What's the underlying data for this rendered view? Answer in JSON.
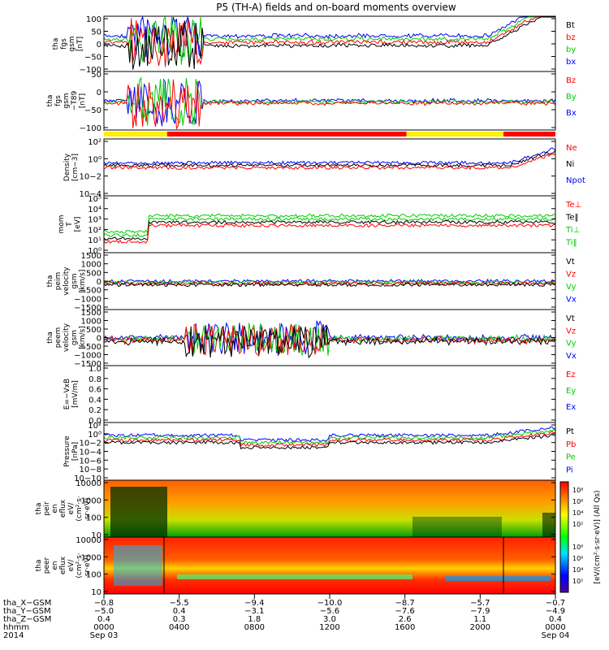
{
  "chart_data": {
    "type": "line",
    "title": "P5 (TH-A) fields and on-board moments overview",
    "panels": [
      {
        "id": "fgs-gsm",
        "ylabel": [
          "tha",
          "fgs",
          "gsm",
          "[nT]"
        ],
        "yticks": [
          "100",
          "50",
          "0",
          "−50",
          "−100"
        ],
        "legend": [
          {
            "label": "Bt",
            "color": "#000000"
          },
          {
            "label": "bz",
            "color": "#ff0000"
          },
          {
            "label": "by",
            "color": "#00cc00"
          },
          {
            "label": "bx",
            "color": "#0000ff"
          }
        ]
      },
      {
        "id": "fgs-gsm-t89",
        "ylabel": [
          "tha",
          "fgs",
          "gsm",
          "−T89",
          "[nT]"
        ],
        "yticks": [
          "50",
          "0",
          "−50",
          "−100"
        ],
        "legend": [
          {
            "label": "Bz",
            "color": "#ff0000"
          },
          {
            "label": "By",
            "color": "#00cc00"
          },
          {
            "label": "Bx",
            "color": "#0000ff"
          }
        ]
      },
      {
        "id": "density",
        "ylabel": [
          "Density",
          "[cm−3]"
        ],
        "yticks": [
          "10²",
          "10⁰",
          "10−2",
          "10−4"
        ],
        "legend": [
          {
            "label": "Ne",
            "color": "#ff0000"
          },
          {
            "label": "Ni",
            "color": "#000000"
          },
          {
            "label": "Npot",
            "color": "#0000ff"
          }
        ]
      },
      {
        "id": "temperature",
        "ylabel": [
          "mom",
          "T",
          "[eV]"
        ],
        "yticks": [
          "10⁵",
          "10⁴",
          "10³",
          "10²",
          "10¹",
          "10⁰"
        ],
        "legend": [
          {
            "label": "Te⊥",
            "color": "#ff0000"
          },
          {
            "label": "Te‖",
            "color": "#000000"
          },
          {
            "label": "Ti⊥",
            "color": "#00cc00"
          },
          {
            "label": "Ti‖",
            "color": "#00cc00"
          }
        ]
      },
      {
        "id": "peim-velocity",
        "ylabel": [
          "tha",
          "peim",
          "velocity",
          "gsm",
          "[km/s]"
        ],
        "yticks": [
          "1500",
          "1000",
          "500",
          "0",
          "−500",
          "−1000",
          "−1500"
        ],
        "legend": [
          {
            "label": "Vt",
            "color": "#000000"
          },
          {
            "label": "Vz",
            "color": "#ff0000"
          },
          {
            "label": "Vy",
            "color": "#00cc00"
          },
          {
            "label": "Vx",
            "color": "#0000ff"
          }
        ]
      },
      {
        "id": "peem-velocity",
        "ylabel": [
          "tha",
          "peem",
          "velocity",
          "gsm",
          "[km/s]"
        ],
        "yticks": [
          "1500",
          "1000",
          "500",
          "0",
          "−500",
          "−1000",
          "−1500"
        ],
        "legend": [
          {
            "label": "Vt",
            "color": "#000000"
          },
          {
            "label": "Vz",
            "color": "#ff0000"
          },
          {
            "label": "Vy",
            "color": "#00cc00"
          },
          {
            "label": "Vx",
            "color": "#0000ff"
          }
        ]
      },
      {
        "id": "efield",
        "ylabel": [
          "E=−VxB",
          "[mV/m]"
        ],
        "yticks": [
          "1.0",
          "0.8",
          "0.6",
          "0.4",
          "0.2",
          "0.0"
        ],
        "legend": [
          {
            "label": "Ez",
            "color": "#ff0000"
          },
          {
            "label": "Ey",
            "color": "#00cc00"
          },
          {
            "label": "Ex",
            "color": "#0000ff"
          }
        ]
      },
      {
        "id": "pressure",
        "ylabel": [
          "Pressure",
          "[nPa]"
        ],
        "yticks": [
          "10²",
          "10⁰",
          "10−2",
          "10−4",
          "10−6",
          "10−8",
          "10−10"
        ],
        "legend": [
          {
            "label": "Pt",
            "color": "#000000"
          },
          {
            "label": "Pb",
            "color": "#ff0000"
          },
          {
            "label": "Pe",
            "color": "#00cc00"
          },
          {
            "label": "Pi",
            "color": "#0000ff"
          }
        ]
      },
      {
        "id": "peir-spectrogram",
        "ylabel": [
          "tha",
          "peir",
          "en",
          "eflux",
          "eV/",
          "(cm²·s·",
          "sr·eV)"
        ],
        "yticks": [
          "10000",
          "1000",
          "100",
          "10"
        ]
      },
      {
        "id": "peer-spectrogram",
        "ylabel": [
          "tha",
          "peer",
          "en",
          "eflux",
          "eV/",
          "(cm²·s·",
          "sr·eV)"
        ],
        "yticks": [
          "10000",
          "1000",
          "100",
          "10"
        ]
      }
    ],
    "colorbar": {
      "label": "[eV/(cm²·s·sr·eV)] (All Qs)",
      "ticks_upper": [
        "10⁸",
        "10⁶",
        "10⁴",
        "10²"
      ],
      "ticks_lower": [
        "10⁸",
        "10⁶",
        "10⁴",
        "10²"
      ]
    },
    "mode_bar": {
      "segments": [
        {
          "from": 0.0,
          "to": 0.14,
          "color": "#ffee00"
        },
        {
          "from": 0.14,
          "to": 0.67,
          "color": "#ff0000"
        },
        {
          "from": 0.67,
          "to": 0.885,
          "color": "#ffee00"
        },
        {
          "from": 0.885,
          "to": 1.0,
          "color": "#ff0000"
        }
      ]
    },
    "x_axis": {
      "row_labels": [
        "tha_X−GSM",
        "tha_Y−GSM",
        "tha_Z−GSM",
        "hhmm",
        "2014"
      ],
      "ticks": [
        {
          "values": [
            "−0.8",
            "−5.0",
            "0.4",
            "0000",
            "Sep 03"
          ]
        },
        {
          "values": [
            "−5.5",
            "0.4",
            "0.3",
            "0400",
            ""
          ]
        },
        {
          "values": [
            "−9.4",
            "−3.1",
            "1.8",
            "0800",
            ""
          ]
        },
        {
          "values": [
            "−10.0",
            "−5.6",
            "3.0",
            "1200",
            ""
          ]
        },
        {
          "values": [
            "−8.7",
            "−7.6",
            "2.6",
            "1600",
            ""
          ]
        },
        {
          "values": [
            "−5.7",
            "−7.9",
            "1.1",
            "2000",
            ""
          ]
        },
        {
          "values": [
            "−0.7",
            "−4.9",
            "0.4",
            "0000",
            "Sep 04"
          ]
        }
      ]
    }
  }
}
